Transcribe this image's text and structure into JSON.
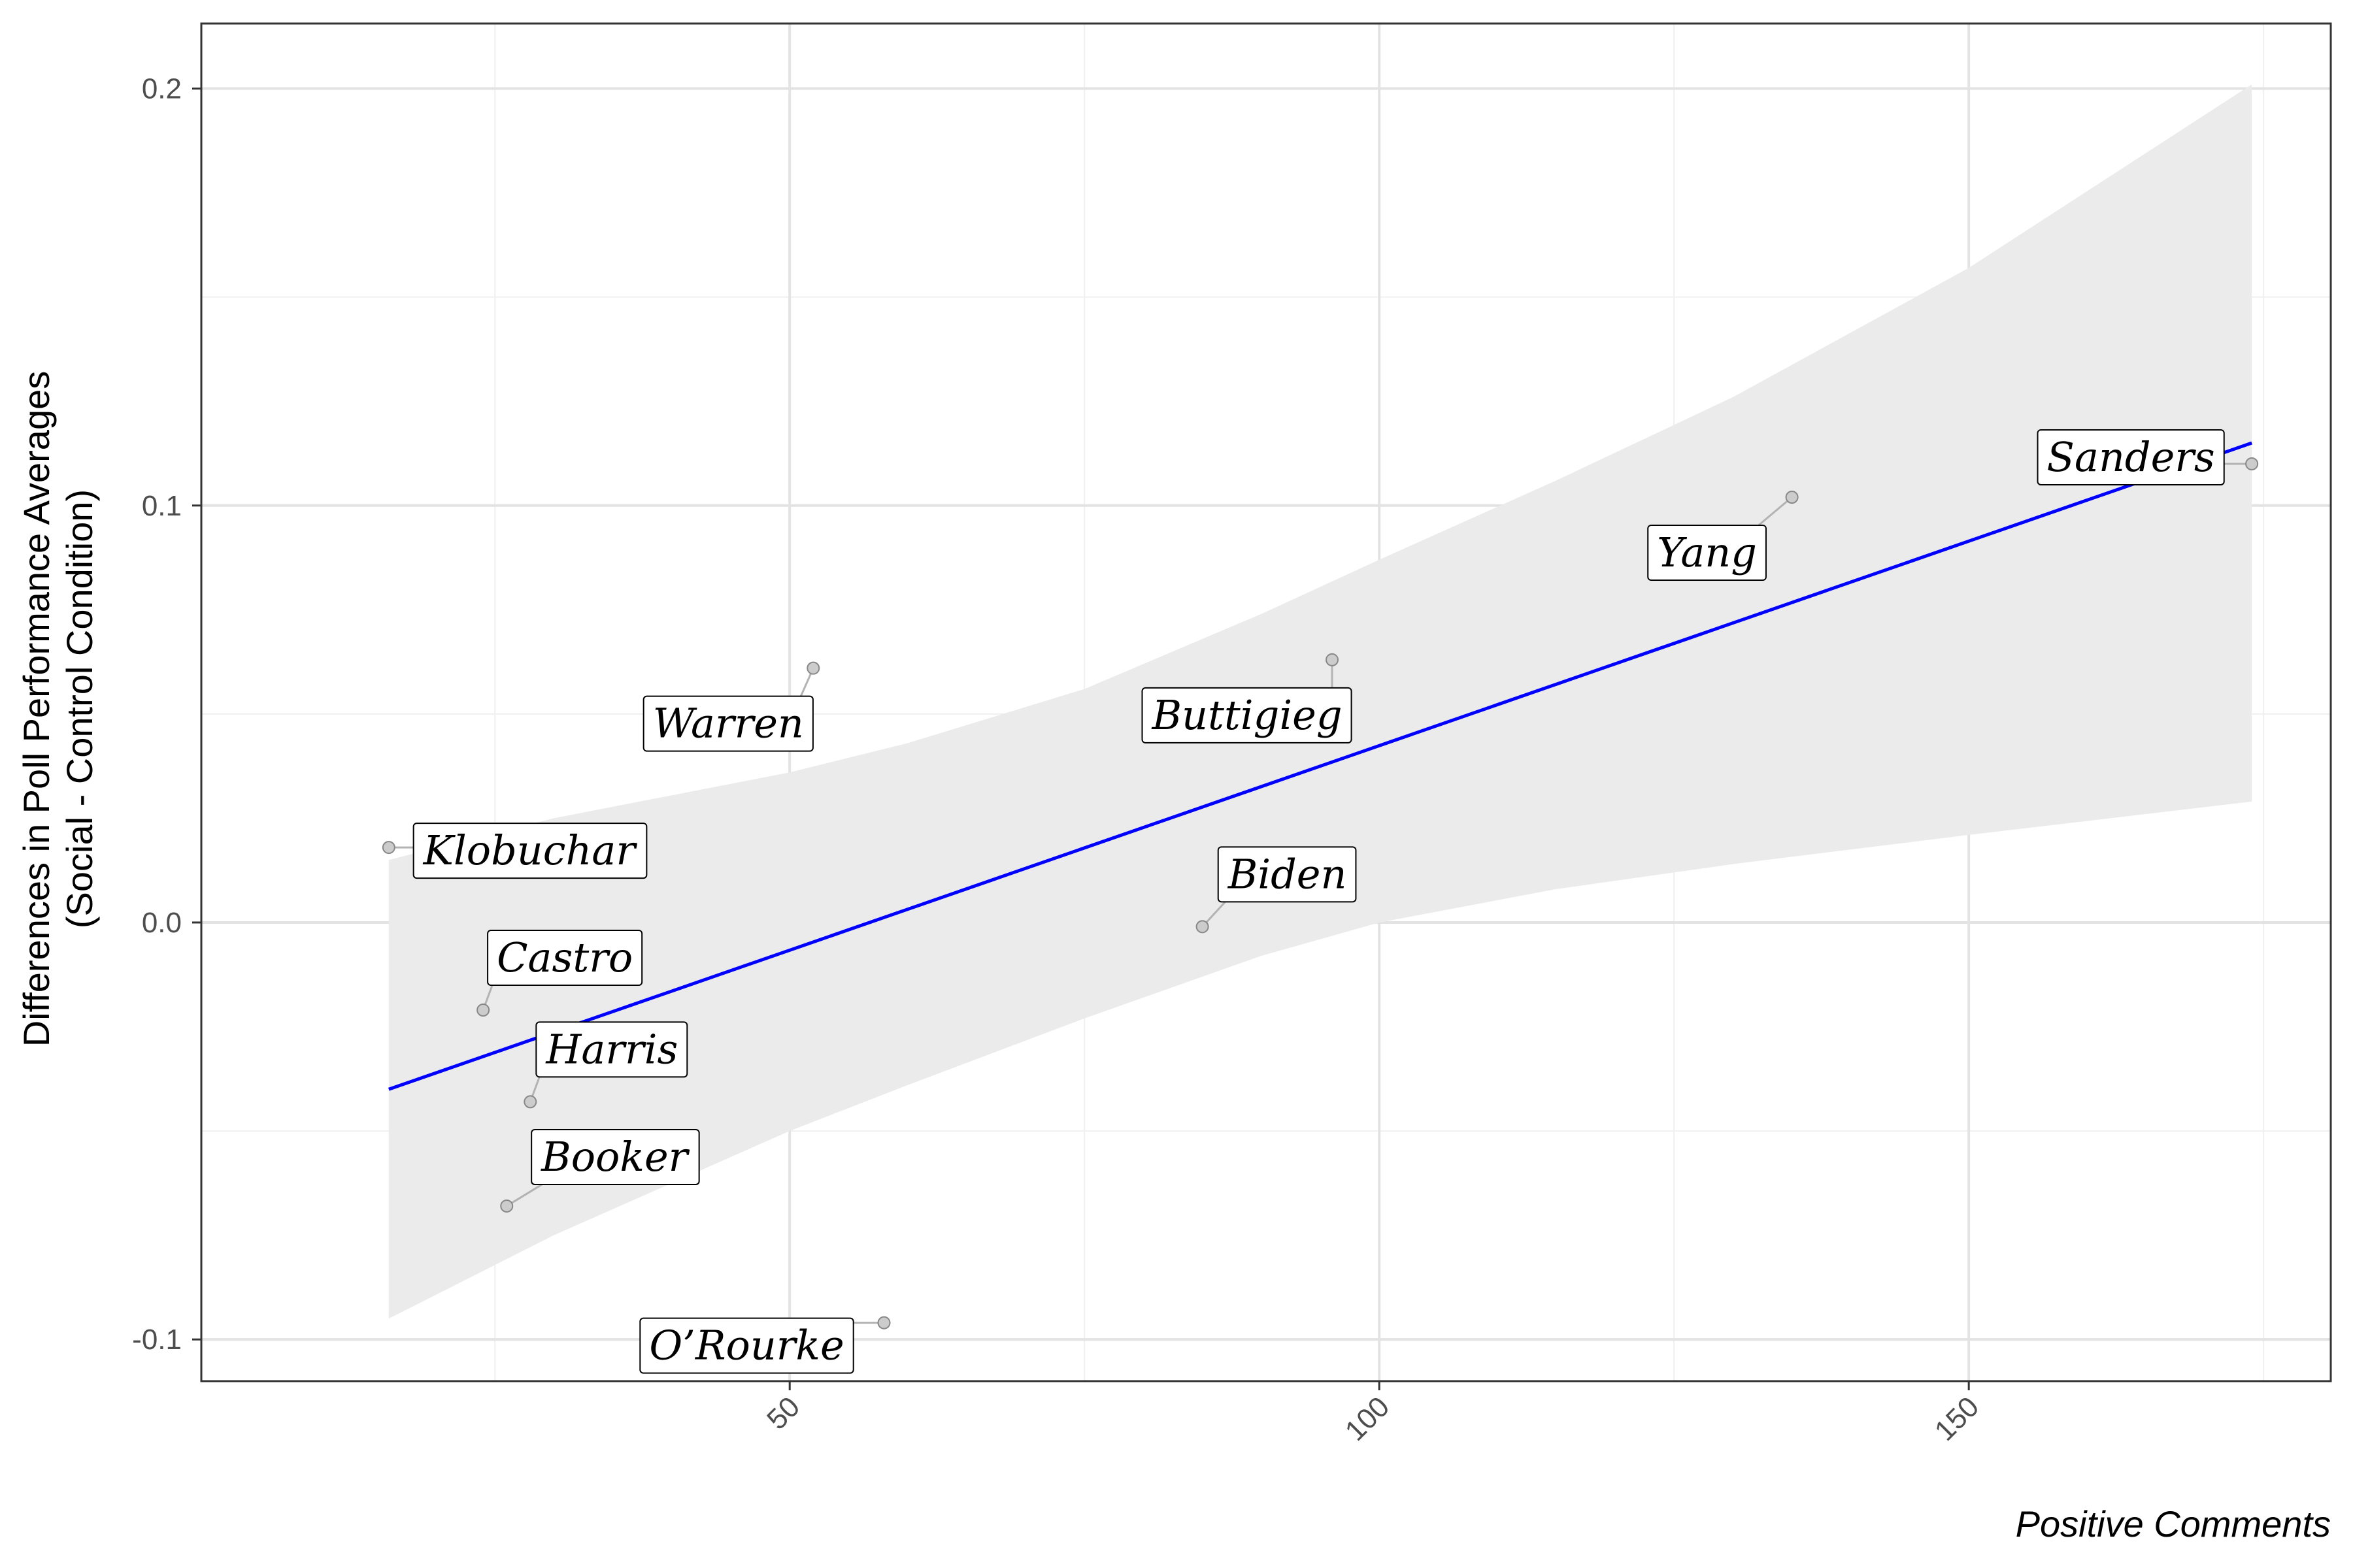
{
  "chart_data": {
    "type": "scatter",
    "title": "",
    "xlabel": "Positive Comments",
    "ylabel_lines": [
      "Differences in Poll Performance Averages",
      "(Social - Control Condition)"
    ],
    "xlim": [
      0.1,
      180.7
    ],
    "ylim": [
      -0.11,
      0.2156
    ],
    "x_ticks": [
      50,
      100,
      150
    ],
    "x_tick_labels": [
      "50",
      "100",
      "150"
    ],
    "y_ticks": [
      -0.1,
      0.0,
      0.1,
      0.2
    ],
    "y_tick_labels": [
      "-0.1",
      "0.0",
      "0.1",
      "0.2"
    ],
    "x_minor_ticks": [
      25,
      75,
      125,
      175
    ],
    "y_minor_ticks": [
      -0.05,
      0.05,
      0.15
    ],
    "grid": true,
    "legend": "none",
    "points": [
      {
        "label": "Klobuchar",
        "x": 16,
        "y": 0.018
      },
      {
        "label": "Castro",
        "x": 24,
        "y": -0.021
      },
      {
        "label": "Harris",
        "x": 28,
        "y": -0.043
      },
      {
        "label": "Booker",
        "x": 26,
        "y": -0.068
      },
      {
        "label": "Warren",
        "x": 52,
        "y": 0.061
      },
      {
        "label": "O’Rourke",
        "x": 58,
        "y": -0.096
      },
      {
        "label": "Buttigieg",
        "x": 96,
        "y": 0.063
      },
      {
        "label": "Biden",
        "x": 85,
        "y": -0.001
      },
      {
        "label": "Yang",
        "x": 135,
        "y": 0.102
      },
      {
        "label": "Sanders",
        "x": 174,
        "y": 0.11
      }
    ],
    "fit_line": {
      "x": [
        16,
        174
      ],
      "y": [
        -0.04,
        0.115
      ],
      "color": "#0000ff"
    },
    "confidence_band": {
      "color": "#ebebeb",
      "x": [
        16,
        30,
        50,
        60,
        75,
        90,
        100,
        115,
        130,
        150,
        174
      ],
      "lower": [
        -0.095,
        -0.075,
        -0.05,
        -0.039,
        -0.023,
        -0.008,
        0.0,
        0.008,
        0.014,
        0.021,
        0.029
      ],
      "upper": [
        0.015,
        0.025,
        0.036,
        0.043,
        0.056,
        0.074,
        0.087,
        0.106,
        0.126,
        0.157,
        0.201
      ]
    }
  }
}
